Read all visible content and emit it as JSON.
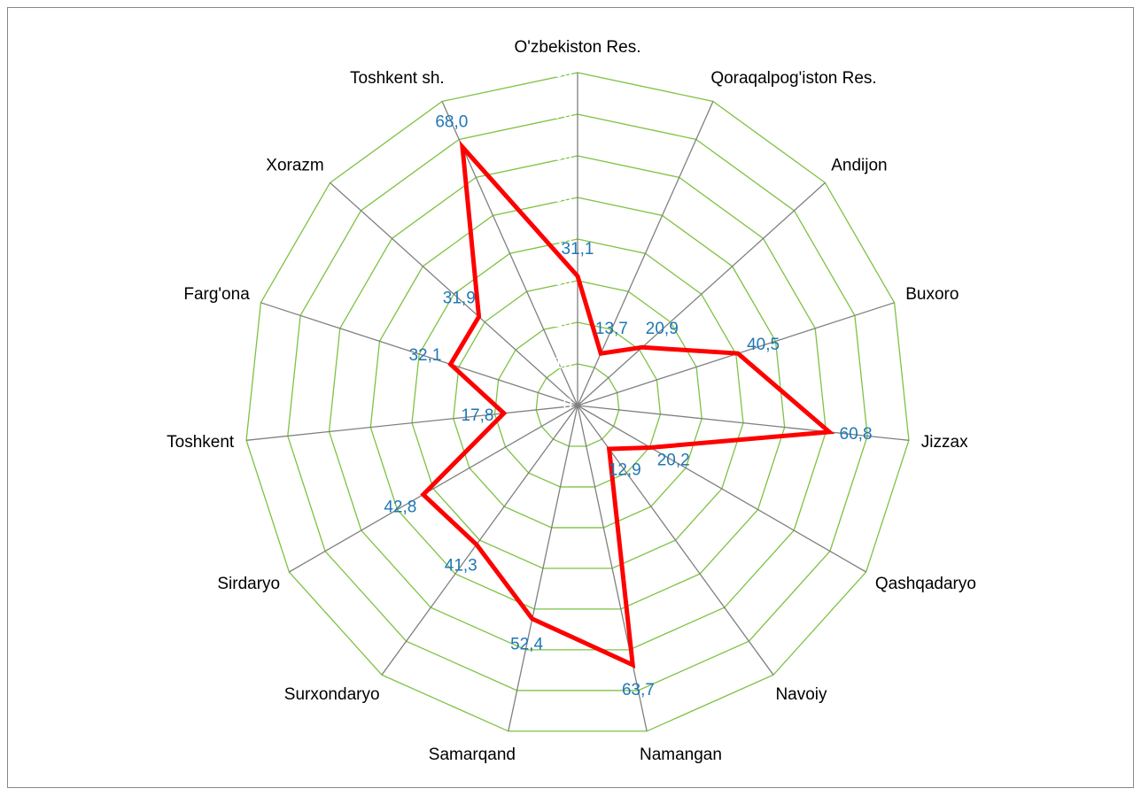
{
  "chart_data": {
    "type": "radar",
    "categories": [
      "O'zbekiston Res.",
      "Qoraqalpog'iston Res.",
      "Andijon",
      "Buxoro",
      "Jizzax",
      "Qashqadaryo",
      "Navoiy",
      "Namangan",
      "Samarqand",
      "Surxondaryo",
      "Sirdaryo",
      "Toshkent",
      "Farg'ona",
      "Xorazm",
      "Toshkent sh."
    ],
    "series": [
      {
        "color": "#ff0000",
        "values": [
          31.1,
          13.7,
          20.9,
          40.5,
          60.8,
          20.2,
          12.9,
          63.7,
          52.4,
          41.3,
          42.8,
          17.8,
          32.1,
          31.9,
          68.0
        ],
        "value_labels": [
          "31,1",
          "13,7",
          "20,9",
          "40,5",
          "60,8",
          "20,2",
          "12,9",
          "63,7",
          "52,4",
          "41,3",
          "42,8",
          "17,8",
          "32,1",
          "31,9",
          "68,0"
        ]
      }
    ],
    "ylim": [
      0,
      80
    ],
    "yticks": [
      0,
      10,
      20,
      30,
      40,
      50,
      60,
      70,
      80
    ],
    "grid": true,
    "grid_color": "#7dc242",
    "spoke_color": "#808080",
    "label_color": "#1f77b4",
    "tick_label_color": "#ffffff"
  }
}
